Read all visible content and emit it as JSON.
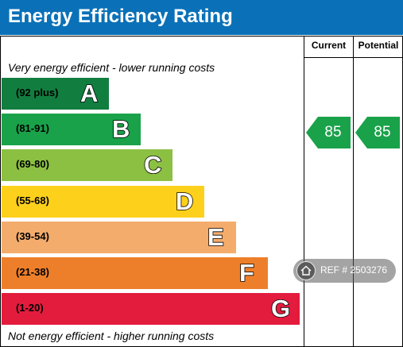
{
  "title": "Energy Efficiency Rating",
  "columns": {
    "current": "Current",
    "potential": "Potential"
  },
  "top_caption": "Very energy efficient - lower running costs",
  "bottom_caption": "Not energy efficient - higher running costs",
  "ratings": {
    "current": "85",
    "potential": "85",
    "color": "#1aa24a"
  },
  "watermark": {
    "text": "REF # 2503276",
    "icon": "home-icon"
  },
  "colors": {
    "header": "#0a71b8"
  },
  "chart_data": {
    "type": "bar",
    "title": "Energy Efficiency Rating",
    "bands": [
      {
        "range": "(92 plus)",
        "letter": "A",
        "color": "#117e3f"
      },
      {
        "range": "(81-91)",
        "letter": "B",
        "color": "#1aa24a"
      },
      {
        "range": "(69-80)",
        "letter": "C",
        "color": "#8cc043"
      },
      {
        "range": "(55-68)",
        "letter": "D",
        "color": "#fdd01b"
      },
      {
        "range": "(39-54)",
        "letter": "E",
        "color": "#f4ac6d"
      },
      {
        "range": "(21-38)",
        "letter": "F",
        "color": "#ee7f2a"
      },
      {
        "range": "(1-20)",
        "letter": "G",
        "color": "#e31c3e"
      }
    ],
    "current": 85,
    "potential": 85
  }
}
